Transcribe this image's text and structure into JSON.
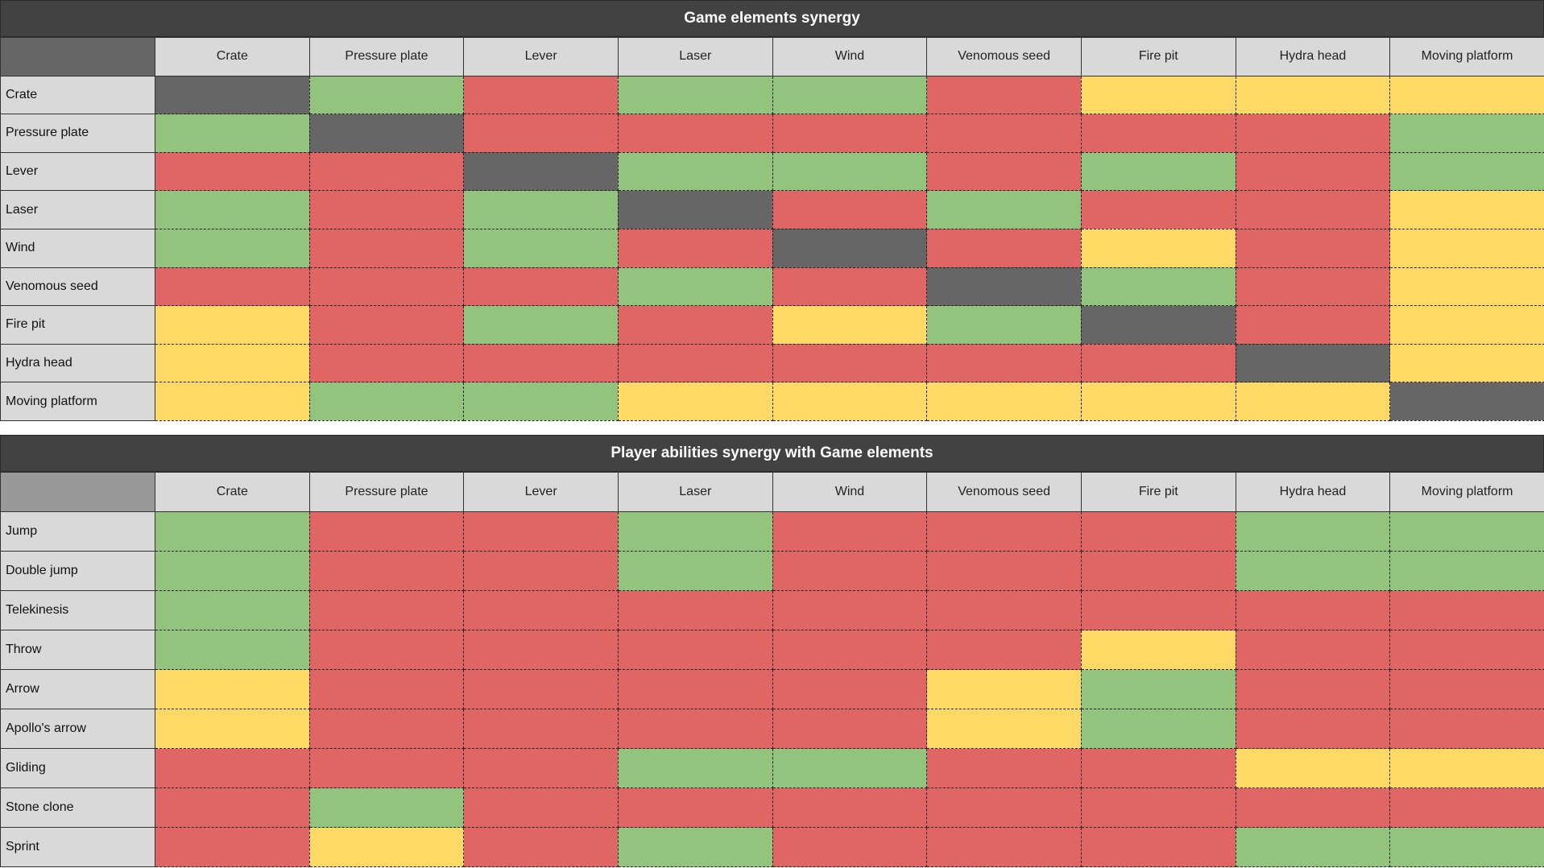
{
  "colors": {
    "g": "#93c47d",
    "r": "#e06666",
    "y": "#ffd966",
    "x": "#666666"
  },
  "tables": [
    {
      "title": "Game elements synergy",
      "columns": [
        "Crate",
        "Pressure plate",
        "Lever",
        "Laser",
        "Wind",
        "Venomous seed",
        "Fire pit",
        "Hydra head",
        "Moving platform"
      ],
      "rows": [
        {
          "label": "Crate",
          "cells": [
            "x",
            "g",
            "r",
            "g",
            "g",
            "r",
            "y",
            "y",
            "y"
          ]
        },
        {
          "label": "Pressure plate",
          "cells": [
            "g",
            "x",
            "r",
            "r",
            "r",
            "r",
            "r",
            "r",
            "g"
          ]
        },
        {
          "label": "Lever",
          "cells": [
            "r",
            "r",
            "x",
            "g",
            "g",
            "r",
            "g",
            "r",
            "g"
          ]
        },
        {
          "label": "Laser",
          "cells": [
            "g",
            "r",
            "g",
            "x",
            "r",
            "g",
            "r",
            "r",
            "y"
          ]
        },
        {
          "label": "Wind",
          "cells": [
            "g",
            "r",
            "g",
            "r",
            "x",
            "r",
            "y",
            "r",
            "y"
          ]
        },
        {
          "label": "Venomous seed",
          "cells": [
            "r",
            "r",
            "r",
            "g",
            "r",
            "x",
            "g",
            "r",
            "y"
          ]
        },
        {
          "label": "Fire pit",
          "cells": [
            "y",
            "r",
            "g",
            "r",
            "y",
            "g",
            "x",
            "r",
            "y"
          ]
        },
        {
          "label": "Hydra head",
          "cells": [
            "y",
            "r",
            "r",
            "r",
            "r",
            "r",
            "r",
            "x",
            "y"
          ]
        },
        {
          "label": "Moving platform",
          "cells": [
            "y",
            "g",
            "g",
            "y",
            "y",
            "y",
            "y",
            "y",
            "x"
          ]
        }
      ]
    },
    {
      "title": "Player abilities synergy with Game elements",
      "columns": [
        "Crate",
        "Pressure plate",
        "Lever",
        "Laser",
        "Wind",
        "Venomous seed",
        "Fire pit",
        "Hydra head",
        "Moving platform"
      ],
      "rows": [
        {
          "label": "Jump",
          "cells": [
            "g",
            "r",
            "r",
            "g",
            "r",
            "r",
            "r",
            "g",
            "g"
          ]
        },
        {
          "label": "Double jump",
          "cells": [
            "g",
            "r",
            "r",
            "g",
            "r",
            "r",
            "r",
            "g",
            "g"
          ]
        },
        {
          "label": "Telekinesis",
          "cells": [
            "g",
            "r",
            "r",
            "r",
            "r",
            "r",
            "r",
            "r",
            "r"
          ]
        },
        {
          "label": "Throw",
          "cells": [
            "g",
            "r",
            "r",
            "r",
            "r",
            "r",
            "y",
            "r",
            "r"
          ]
        },
        {
          "label": "Arrow",
          "cells": [
            "y",
            "r",
            "r",
            "r",
            "r",
            "y",
            "g",
            "r",
            "r"
          ]
        },
        {
          "label": "Apollo's arrow",
          "cells": [
            "y",
            "r",
            "r",
            "r",
            "r",
            "y",
            "g",
            "r",
            "r"
          ]
        },
        {
          "label": "Gliding",
          "cells": [
            "r",
            "r",
            "r",
            "g",
            "g",
            "r",
            "r",
            "y",
            "y"
          ]
        },
        {
          "label": "Stone clone",
          "cells": [
            "r",
            "g",
            "r",
            "r",
            "r",
            "r",
            "r",
            "r",
            "r"
          ]
        },
        {
          "label": "Sprint",
          "cells": [
            "r",
            "y",
            "r",
            "g",
            "r",
            "r",
            "r",
            "g",
            "g"
          ]
        }
      ]
    }
  ]
}
